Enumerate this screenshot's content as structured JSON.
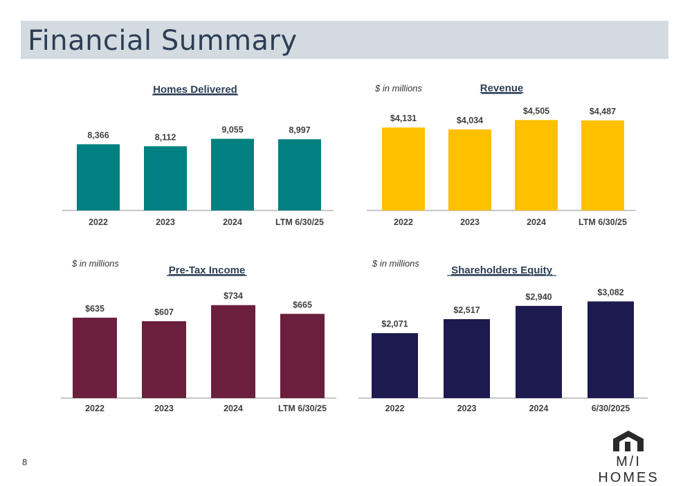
{
  "header": {
    "title": "Financial Summary"
  },
  "footer": {
    "page_number": "8",
    "brand": "M/I HOMES"
  },
  "chart_data": [
    {
      "id": "homes",
      "type": "bar",
      "title": "Homes Delivered",
      "unit_note": "",
      "categories": [
        "2022",
        "2023",
        "2024",
        "LTM 6/30/25"
      ],
      "values": [
        8366,
        8112,
        9055,
        8997
      ],
      "labels": [
        "8,366",
        "8,112",
        "9,055",
        "8,997"
      ],
      "color": "#008080",
      "ylim": [
        0,
        10500
      ]
    },
    {
      "id": "revenue",
      "type": "bar",
      "title": "Revenue",
      "unit_note": "$ in millions",
      "categories": [
        "2022",
        "2023",
        "2024",
        "LTM 6/30/25"
      ],
      "values": [
        4131,
        4034,
        4505,
        4487
      ],
      "labels": [
        "$4,131",
        "$4,034",
        "$4,505",
        "$4,487"
      ],
      "color": "#ffc000",
      "ylim": [
        0,
        5000
      ]
    },
    {
      "id": "pretax",
      "type": "bar",
      "title": "Pre-Tax Income",
      "unit_note": "$ in millions",
      "categories": [
        "2022",
        "2023",
        "2024",
        "LTM 6/30/25"
      ],
      "values": [
        635,
        607,
        734,
        665
      ],
      "labels": [
        "$635",
        "$607",
        "$734",
        "$665"
      ],
      "color": "#6b1f3d",
      "ylim": [
        0,
        820
      ]
    },
    {
      "id": "equity",
      "type": "bar",
      "title": "Shareholders Equity",
      "unit_note": "$ in millions",
      "categories": [
        "2022",
        "2023",
        "2024",
        "6/30/2025"
      ],
      "values": [
        2071,
        2517,
        2940,
        3082
      ],
      "labels": [
        "$2,071",
        "$2,517",
        "$2,940",
        "$3,082"
      ],
      "color": "#1c1a4f",
      "ylim": [
        0,
        3400
      ]
    }
  ]
}
